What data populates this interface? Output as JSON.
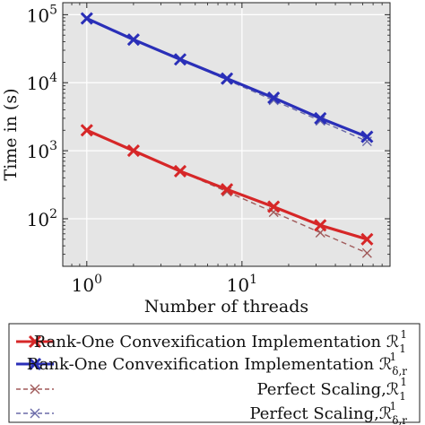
{
  "chart_data": {
    "type": "line",
    "xscale": "log",
    "yscale": "log",
    "xlabel": "Number of threads",
    "ylabel": "Time in (s)",
    "xlim": [
      0.7,
      90
    ],
    "ylim": [
      20,
      150000
    ],
    "grid": true,
    "background": "#e5e5e5",
    "legend_placement": "below",
    "xticks": [
      {
        "value": 1,
        "base": "10",
        "exp": "0"
      },
      {
        "value": 10,
        "base": "10",
        "exp": "1"
      }
    ],
    "yticks": [
      {
        "value": 100,
        "base": "10",
        "exp": "2"
      },
      {
        "value": 1000,
        "base": "10",
        "exp": "3"
      },
      {
        "value": 10000,
        "base": "10",
        "exp": "4"
      },
      {
        "value": 100000,
        "base": "10",
        "exp": "5"
      }
    ],
    "x": [
      1,
      2,
      4,
      8,
      16,
      32,
      64
    ],
    "series": [
      {
        "name": "Rank-One Convexification Implementation ℛ₁¹",
        "label_text": "Rank-One Convexification Implementation ℛ",
        "label_sup": "1",
        "label_sub": "1",
        "color": "#d62728",
        "style": "solid",
        "values": [
          2000,
          1000,
          500,
          270,
          150,
          80,
          50
        ]
      },
      {
        "name": "Rank-One Convexification Implementation ℛ¹δ,r",
        "label_text": "Rank-One Convexification Implementation ℛ",
        "label_sup": "1",
        "label_sub": "δ,r",
        "color": "#2a2fb8",
        "style": "solid",
        "values": [
          88000,
          43000,
          22000,
          11500,
          6000,
          3000,
          1600
        ]
      },
      {
        "name": "Perfect Scaling, ℛ₁¹",
        "label_text": "Perfect Scaling,ℛ",
        "label_sup": "1",
        "label_sub": "1",
        "color": "#a05a5a",
        "style": "dashed",
        "values": [
          2000,
          1000,
          500,
          250,
          125,
          62.5,
          31.25
        ]
      },
      {
        "name": "Perfect Scaling, ℛ¹δ,r",
        "label_text": "Perfect Scaling,ℛ",
        "label_sup": "1",
        "label_sub": "δ,r",
        "color": "#6a6aa8",
        "style": "dashed",
        "values": [
          88000,
          44000,
          22000,
          11000,
          5500,
          2750,
          1375
        ]
      }
    ]
  }
}
